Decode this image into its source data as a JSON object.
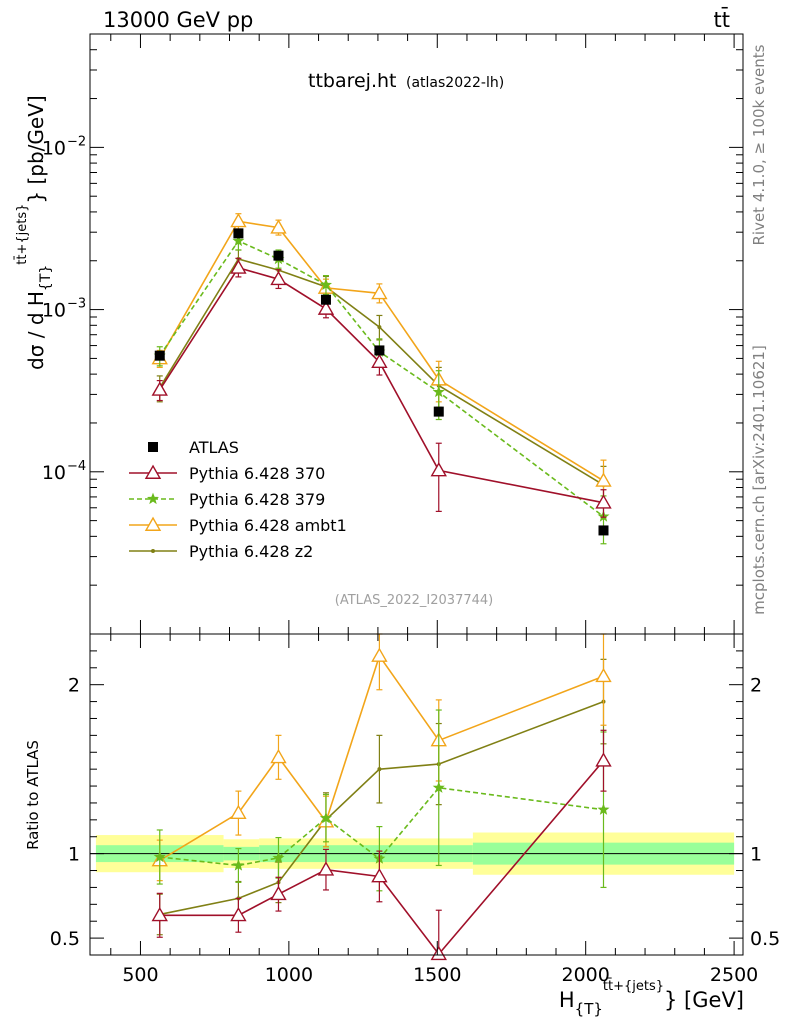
{
  "header": {
    "left": "13000 GeV pp",
    "right": "tt̄"
  },
  "side_text": {
    "top": "Rivet 4.1.0, ≥ 100k events",
    "bottom": "mcplots.cern.ch [arXiv:2401.10621]"
  },
  "chart_data": {
    "type": "line",
    "title": "ttbarej.ht",
    "subtitle": "(atlas2022-lh)",
    "watermark": "(ATLAS_2022_I2037744)",
    "xlabel": "H_{T}^{tt̄+{jets}} [GeV]",
    "xlabel_parts": {
      "main": "H",
      "sub": "{T}",
      "sup": "tt̄+{jets}",
      "unit": "} [GeV]"
    },
    "ylabel": "dσ / d H_{T}^{tt̄+{jets}} [pb/GeV]",
    "ylabel_parts": {
      "main": "dσ / d H",
      "sub": "{T}",
      "sup": "tt̄+{jets}",
      "unit": "} [pb/GeV]"
    },
    "xlim": [
      330,
      2530
    ],
    "ylim": [
      1e-05,
      0.05
    ],
    "yscale": "log",
    "x_ticks": [
      500,
      1000,
      1500,
      2000,
      2500
    ],
    "y_ticks": [
      {
        "value": 0.01,
        "mant": "10",
        "exp": "−2"
      },
      {
        "value": 0.001,
        "mant": "10",
        "exp": "−3"
      },
      {
        "value": 0.0001,
        "mant": "10",
        "exp": "−4"
      }
    ],
    "x": [
      565,
      830,
      965,
      1125,
      1305,
      1505,
      2060
    ],
    "data": {
      "name": "ATLAS",
      "values": [
        0.00052,
        0.00295,
        0.00215,
        0.00115,
        0.00056,
        0.000235,
        4.35e-05
      ]
    },
    "series": [
      {
        "name": "Pythia 6.428 370",
        "color": "#a0102a",
        "dash": "",
        "marker": "triangle-open",
        "values": [
          0.00032,
          0.00181,
          0.00154,
          0.00101,
          0.000475,
          0.000102,
          6.45e-05
        ],
        "err_up": [
          4.5e-05,
          0.00026,
          0.00022,
          0.00014,
          9e-05,
          4.8e-05,
          1.3e-05
        ],
        "err_dn": [
          4.5e-05,
          0.00022,
          0.00019,
          0.00012,
          8e-05,
          4.5e-05,
          1.2e-05
        ]
      },
      {
        "name": "Pythia 6.428 379",
        "color": "#6aba1c",
        "dash": "5,3",
        "marker": "star",
        "values": [
          0.00052,
          0.00265,
          0.00205,
          0.00142,
          0.00055,
          0.00031,
          5.3e-05
        ],
        "err_up": [
          7e-05,
          0.00035,
          0.00028,
          0.0002,
          0.00011,
          0.00011,
          1.8e-05
        ],
        "err_dn": [
          7e-05,
          0.00032,
          0.00025,
          0.00018,
          0.0001,
          0.0001,
          1.7e-05
        ]
      },
      {
        "name": "Pythia 6.428 ambt1",
        "color": "#f2a51a",
        "dash": "",
        "marker": "triangle-open",
        "values": [
          0.0005,
          0.0035,
          0.0032,
          0.00136,
          0.00126,
          0.00037,
          8.8e-05
        ],
        "err_up": [
          6e-05,
          0.0004,
          0.00036,
          0.00018,
          0.00018,
          0.00011,
          3e-05
        ],
        "err_dn": [
          6e-05,
          0.00036,
          0.00032,
          0.00016,
          0.00016,
          0.0001,
          2.7e-05
        ]
      },
      {
        "name": "Pythia 6.428 z2",
        "color": "#808015",
        "dash": "",
        "marker": "dot",
        "values": [
          0.00033,
          0.00205,
          0.00175,
          0.00138,
          0.00078,
          0.00034,
          8.3e-05
        ],
        "err_up": [
          6e-05,
          0.00028,
          0.00025,
          0.00022,
          0.00014,
          0.0001,
          2.5e-05
        ],
        "err_dn": [
          6e-05,
          0.00025,
          0.00022,
          0.0002,
          0.00013,
          9e-05,
          2.3e-05
        ]
      }
    ],
    "ratio": {
      "ylabel": "Ratio to ATLAS",
      "ylim": [
        0.4,
        2.3
      ],
      "y_ticks": [
        {
          "value": 0.5,
          "label": "0.5"
        },
        {
          "value": 1,
          "label": "1"
        },
        {
          "value": 2,
          "label": "2"
        }
      ],
      "band_edges": [
        350,
        780,
        900,
        1620,
        2500
      ],
      "stat_band": [
        [
          0.95,
          1.05
        ],
        [
          0.96,
          1.04
        ],
        [
          0.95,
          1.05
        ],
        [
          0.935,
          1.065
        ]
      ],
      "syst_band": [
        [
          0.89,
          1.11
        ],
        [
          0.915,
          1.085
        ],
        [
          0.91,
          1.09
        ],
        [
          0.875,
          1.125
        ]
      ],
      "series": [
        {
          "values": [
            0.635,
            0.635,
            0.76,
            0.905,
            0.865,
            0.405,
            1.55
          ],
          "err": [
            0.13,
            0.1,
            0.1,
            0.12,
            0.15,
            0.26,
            0.18
          ]
        },
        {
          "values": [
            0.98,
            0.93,
            0.975,
            1.21,
            0.97,
            1.39,
            1.26
          ],
          "err": [
            0.16,
            0.1,
            0.12,
            0.14,
            0.19,
            0.46,
            0.46
          ]
        },
        {
          "values": [
            0.96,
            1.24,
            1.57,
            1.19,
            2.17,
            1.67,
            2.05
          ],
          "err": [
            0.12,
            0.13,
            0.13,
            0.15,
            0.2,
            0.24,
            0.29
          ]
        },
        {
          "values": [
            0.64,
            0.735,
            0.83,
            1.2,
            1.5,
            1.53,
            1.9
          ],
          "err": [
            0.12,
            0.1,
            0.12,
            0.16,
            0.2,
            0.24,
            0.25
          ]
        }
      ]
    },
    "ratio_x_tick_labels": [
      "500",
      "1000",
      "1500",
      "2000",
      "2500"
    ]
  }
}
